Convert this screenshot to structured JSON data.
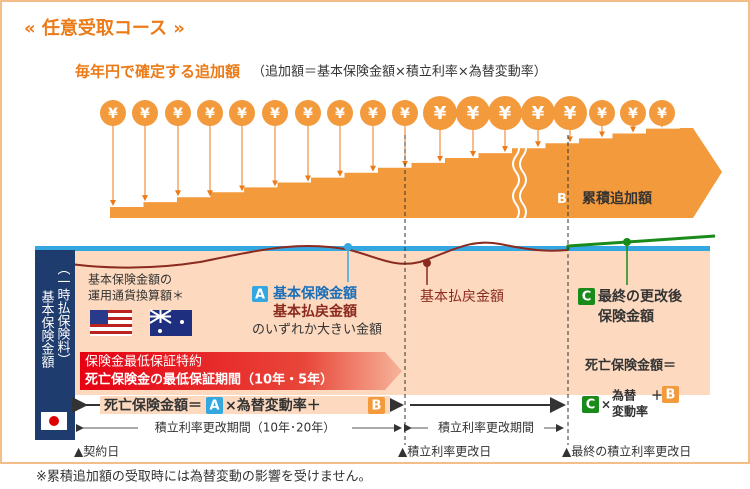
{
  "header": {
    "title": "« 任意受取コース »"
  },
  "subtitle": {
    "emphasis": "毎年円で確定する追加額",
    "formula": "（追加額＝基本保険金額×積立利率×為替変動率）"
  },
  "coin_symbol": "¥",
  "accumulated": {
    "badge": "B",
    "label": "累積追加額"
  },
  "left_note": {
    "line1": "基本保険金額の",
    "line2": "運用通貨換算額＊"
  },
  "amount_a": {
    "badge": "A",
    "line1": "基本保険金額",
    "line2": "基本払戻金額",
    "line3": "のいずれか大きい金額"
  },
  "refund": "基本払戻金額",
  "amount_c": {
    "badge": "C",
    "line1": "最終の更改後",
    "line2": "保険金額"
  },
  "side_label": {
    "main": "基本保険金額",
    "sub": "（一時払保険料）"
  },
  "guarantee": {
    "line1": "保険金最低保証特約",
    "line2": "死亡保険金の最低保証期間（10年・5年）"
  },
  "death_formula_1": {
    "prefix": "死亡保険金額＝",
    "a": "A",
    "middle": "×為替変動率＋",
    "b": "B"
  },
  "death_formula_2": {
    "prefix": "死亡保険金額＝",
    "c": "C",
    "times": "×",
    "fx1": "為替",
    "fx2": "変動率",
    "plus": "＋",
    "b": "B"
  },
  "periods": {
    "first": "積立利率更改期間（10年･20年）",
    "second": "積立利率更改期間"
  },
  "markers": {
    "start": "▲契約日",
    "renewal": "▲積立利率更改日",
    "final": "▲最終の積立利率更改日"
  },
  "footnote": "※累積追加額の受取時には為替変動の影響を受けません。"
}
